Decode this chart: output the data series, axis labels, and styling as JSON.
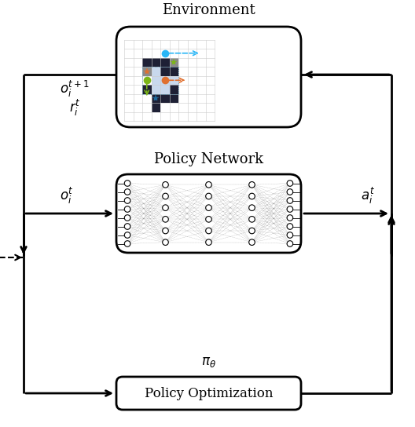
{
  "title_env": "Environment",
  "title_policy_net": "Policy Network",
  "title_policy_opt": "Policy Optimization",
  "label_obs_next": "$o_i^{t+1}$",
  "label_reward": "$r_i^t$",
  "label_obs": "$o_i^t$",
  "label_action": "$a_i^t$",
  "label_pi": "$\\pi_{\\theta}$",
  "fig_bg": "#ffffff",
  "obstacle_color": "#1e2035",
  "light_blue_color": "#c8d8ed",
  "gray_color": "#8a8a8a",
  "agent_blue_color": "#29b6f6",
  "agent_green_color": "#7cb518",
  "agent_orange_color": "#e07030",
  "goal_star_blue": "#1e6b9e",
  "goal_star_green": "#7cb518",
  "goal_star_orange": "#e07030"
}
